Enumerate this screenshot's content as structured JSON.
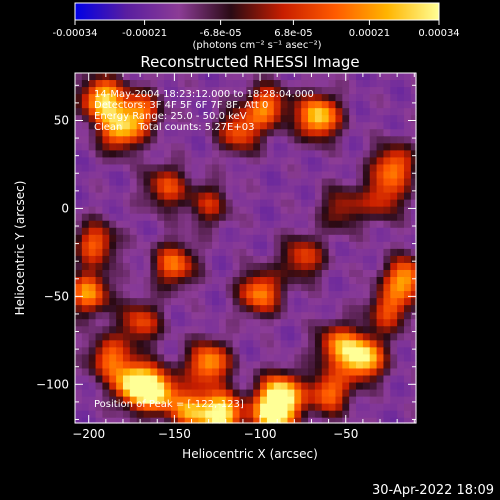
{
  "chart_data": {
    "type": "heatmap",
    "title": "Reconstructed RHESSI Image",
    "xlabel": "Heliocentric X (arcsec)",
    "ylabel": "Heliocentric Y (arcsec)",
    "xlim": [
      -208,
      -9
    ],
    "ylim": [
      -122,
      77
    ],
    "x_ticks": [
      -200,
      -150,
      -100,
      -50
    ],
    "y_ticks": [
      50,
      0,
      -50,
      -100
    ],
    "colorbar": {
      "range": [
        -0.00034,
        0.00034
      ],
      "tick_labels": [
        "-0.00034",
        "-0.00021",
        "-6.8e-05",
        "6.8e-05",
        "0.00021",
        "0.00034"
      ],
      "unit": "(photons cm⁻² s⁻¹ asec⁻²)",
      "colors": [
        "#0000e6",
        "#5a1ea0",
        "#8c3c96",
        "#2a0a14",
        "#c81e00",
        "#ff5a00",
        "#ffb400",
        "#ffff96"
      ]
    },
    "annotations": [
      "14-May-2004 18:23:12.000 to 18:28:04.000",
      "Detectors: 3F 4F 5F 6F 7F 8F, Att 0",
      "Energy Range: 25.0 - 50.0 keV",
      "Clean     Total counts: 5.27E+03"
    ],
    "peak_label": "Position of Peak = [-122,-123]",
    "peak": [
      -122,
      -123
    ],
    "sources": [
      {
        "x": -192,
        "y": 62,
        "value": 0.0003
      },
      {
        "x": -182,
        "y": 44,
        "value": 0.00024
      },
      {
        "x": -170,
        "y": 55,
        "value": 0.0002
      },
      {
        "x": -173,
        "y": -100,
        "value": 0.00033
      },
      {
        "x": -160,
        "y": -104,
        "value": 0.00028
      },
      {
        "x": -130,
        "y": -88,
        "value": 0.00026
      },
      {
        "x": -122,
        "y": -117,
        "value": 0.00033
      },
      {
        "x": -140,
        "y": -115,
        "value": 0.00024
      },
      {
        "x": -88,
        "y": -106,
        "value": 0.00032
      },
      {
        "x": -92,
        "y": -118,
        "value": 0.0003
      },
      {
        "x": -40,
        "y": -85,
        "value": 0.00033
      },
      {
        "x": -55,
        "y": -78,
        "value": 0.00021
      },
      {
        "x": -66,
        "y": 52,
        "value": 0.00031
      },
      {
        "x": -96,
        "y": 58,
        "value": 0.00022
      },
      {
        "x": -112,
        "y": 44,
        "value": 0.0002
      },
      {
        "x": -22,
        "y": 24,
        "value": 0.00022
      },
      {
        "x": -15,
        "y": -40,
        "value": 0.00026
      },
      {
        "x": -25,
        "y": -58,
        "value": 0.00018
      },
      {
        "x": -200,
        "y": -48,
        "value": 0.00024
      },
      {
        "x": -196,
        "y": -20,
        "value": 0.0002
      },
      {
        "x": -188,
        "y": -85,
        "value": 0.0002
      },
      {
        "x": -155,
        "y": 12,
        "value": 0.00018
      },
      {
        "x": -150,
        "y": -32,
        "value": 0.00022
      },
      {
        "x": -100,
        "y": -48,
        "value": 0.00024
      },
      {
        "x": -75,
        "y": -28,
        "value": 0.00018
      },
      {
        "x": -28,
        "y": 6,
        "value": 0.00016
      },
      {
        "x": -52,
        "y": 0,
        "value": 0.00014
      },
      {
        "x": -130,
        "y": 2,
        "value": 0.00014
      },
      {
        "x": -170,
        "y": -65,
        "value": 0.00018
      },
      {
        "x": -60,
        "y": -105,
        "value": 0.00022
      }
    ]
  },
  "footer": {
    "timestamp": "30-Apr-2022 18:09"
  }
}
